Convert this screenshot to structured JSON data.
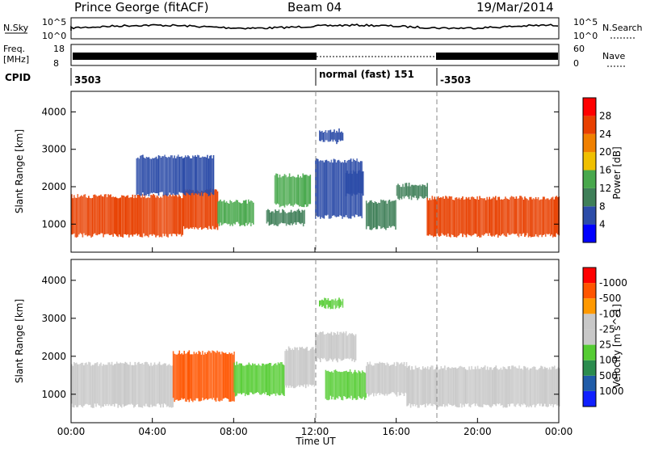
{
  "header": {
    "station": "Prince George (fitACF)",
    "beam": "Beam 04",
    "date": "19/Mar/2014"
  },
  "noise_panel": {
    "left_label": "N.Sky",
    "right_label": "N.Search",
    "left_ticks": [
      "10^5",
      "10^0"
    ],
    "right_ticks": [
      "10^5",
      "10^0"
    ]
  },
  "freq_panel": {
    "left_label_1": "Freq.",
    "left_label_2": "[MHz]",
    "right_label": "Nave",
    "left_ticks": [
      "18",
      "8"
    ],
    "right_ticks": [
      "60",
      "0"
    ]
  },
  "cpid": {
    "label": "CPID",
    "segments": [
      {
        "start_hour": 0,
        "end_hour": 12,
        "text": "3503"
      },
      {
        "start_hour": 12,
        "end_hour": 18,
        "text": "normal (fast) 151"
      },
      {
        "start_hour": 18,
        "end_hour": 24,
        "text": "-3503"
      }
    ]
  },
  "colors": {
    "power_scale": [
      "#0000ff",
      "#2c4ca8",
      "#3f7f58",
      "#48a84c",
      "#f0c000",
      "#f08000",
      "#e84000",
      "#ff0000"
    ],
    "velocity_scale": [
      "#ff0000",
      "#ff5500",
      "#ff9900",
      "#c8c8c8",
      "#c8c8c8",
      "#55cc33",
      "#2b8c4e",
      "#205ca8",
      "#1020ff"
    ],
    "ground_scatter": "#c8c8c8"
  },
  "chart_data": [
    {
      "type": "heatmap",
      "ylabel": "Slant Range [km]",
      "xlabel": "Time UT",
      "xlim": [
        0,
        24
      ],
      "ylim": [
        250,
        4550
      ],
      "x_ticks": [
        "00:00",
        "04:00",
        "08:00",
        "12:00",
        "16:00",
        "20:00",
        "00:00"
      ],
      "y_ticks": [
        1000,
        2000,
        3000,
        4000
      ],
      "colorbar_label": "Power [dB]",
      "colorbar_ticks": [
        4,
        8,
        12,
        16,
        20,
        24,
        28
      ],
      "colorbar_range": [
        0,
        30
      ],
      "regions": [
        {
          "t0": 0.0,
          "t1": 5.5,
          "r0": 700,
          "r1": 1750,
          "level": 24
        },
        {
          "t0": 5.5,
          "t1": 7.2,
          "r0": 900,
          "r1": 1900,
          "level": 26
        },
        {
          "t0": 7.2,
          "t1": 9.0,
          "r0": 1000,
          "r1": 1600,
          "level": 14
        },
        {
          "t0": 9.6,
          "t1": 11.5,
          "r0": 1000,
          "r1": 1350,
          "level": 10
        },
        {
          "t0": 10.0,
          "t1": 11.8,
          "r0": 1500,
          "r1": 2300,
          "level": 14
        },
        {
          "t0": 12.0,
          "t1": 14.3,
          "r0": 1200,
          "r1": 2700,
          "level": 6
        },
        {
          "t0": 13.5,
          "t1": 14.4,
          "r0": 1800,
          "r1": 2400,
          "level": 6
        },
        {
          "t0": 14.5,
          "t1": 16.0,
          "r0": 900,
          "r1": 1600,
          "level": 8
        },
        {
          "t0": 16.0,
          "t1": 17.5,
          "r0": 1700,
          "r1": 2050,
          "level": 8
        },
        {
          "t0": 17.5,
          "t1": 24.0,
          "r0": 700,
          "r1": 1700,
          "level": 24
        },
        {
          "t0": 3.2,
          "t1": 7.0,
          "r0": 1800,
          "r1": 2800,
          "level": 6
        },
        {
          "t0": 12.2,
          "t1": 13.4,
          "r0": 3200,
          "r1": 3500,
          "level": 6
        }
      ]
    },
    {
      "type": "heatmap",
      "ylabel": "Slant Range [km]",
      "xlabel": "Time UT",
      "xlim": [
        0,
        24
      ],
      "ylim": [
        250,
        4550
      ],
      "x_ticks": [
        "00:00",
        "04:00",
        "08:00",
        "12:00",
        "16:00",
        "20:00",
        "00:00"
      ],
      "y_ticks": [
        1000,
        2000,
        3000,
        4000
      ],
      "colorbar_label": "Velocity [m s^-1]",
      "colorbar_ticks": [
        1000,
        500,
        100,
        25,
        -25,
        -100,
        -500,
        -1000
      ],
      "regions": [
        {
          "t0": 0.0,
          "t1": 5.0,
          "r0": 700,
          "r1": 1800,
          "velocity": 0
        },
        {
          "t0": 5.0,
          "t1": 8.0,
          "r0": 850,
          "r1": 2100,
          "velocity": -300
        },
        {
          "t0": 8.0,
          "t1": 10.5,
          "r0": 1000,
          "r1": 1800,
          "velocity": 150
        },
        {
          "t0": 10.5,
          "t1": 12.0,
          "r0": 1200,
          "r1": 2200,
          "velocity": 0
        },
        {
          "t0": 12.0,
          "t1": 14.0,
          "r0": 1900,
          "r1": 2600,
          "velocity": 0
        },
        {
          "t0": 12.5,
          "t1": 14.5,
          "r0": 900,
          "r1": 1600,
          "velocity": 200
        },
        {
          "t0": 14.5,
          "t1": 16.5,
          "r0": 1000,
          "r1": 1800,
          "velocity": 0
        },
        {
          "t0": 16.5,
          "t1": 24.0,
          "r0": 700,
          "r1": 1700,
          "velocity": 0
        },
        {
          "t0": 12.2,
          "t1": 13.4,
          "r0": 3300,
          "r1": 3500,
          "velocity": 200
        }
      ]
    }
  ]
}
